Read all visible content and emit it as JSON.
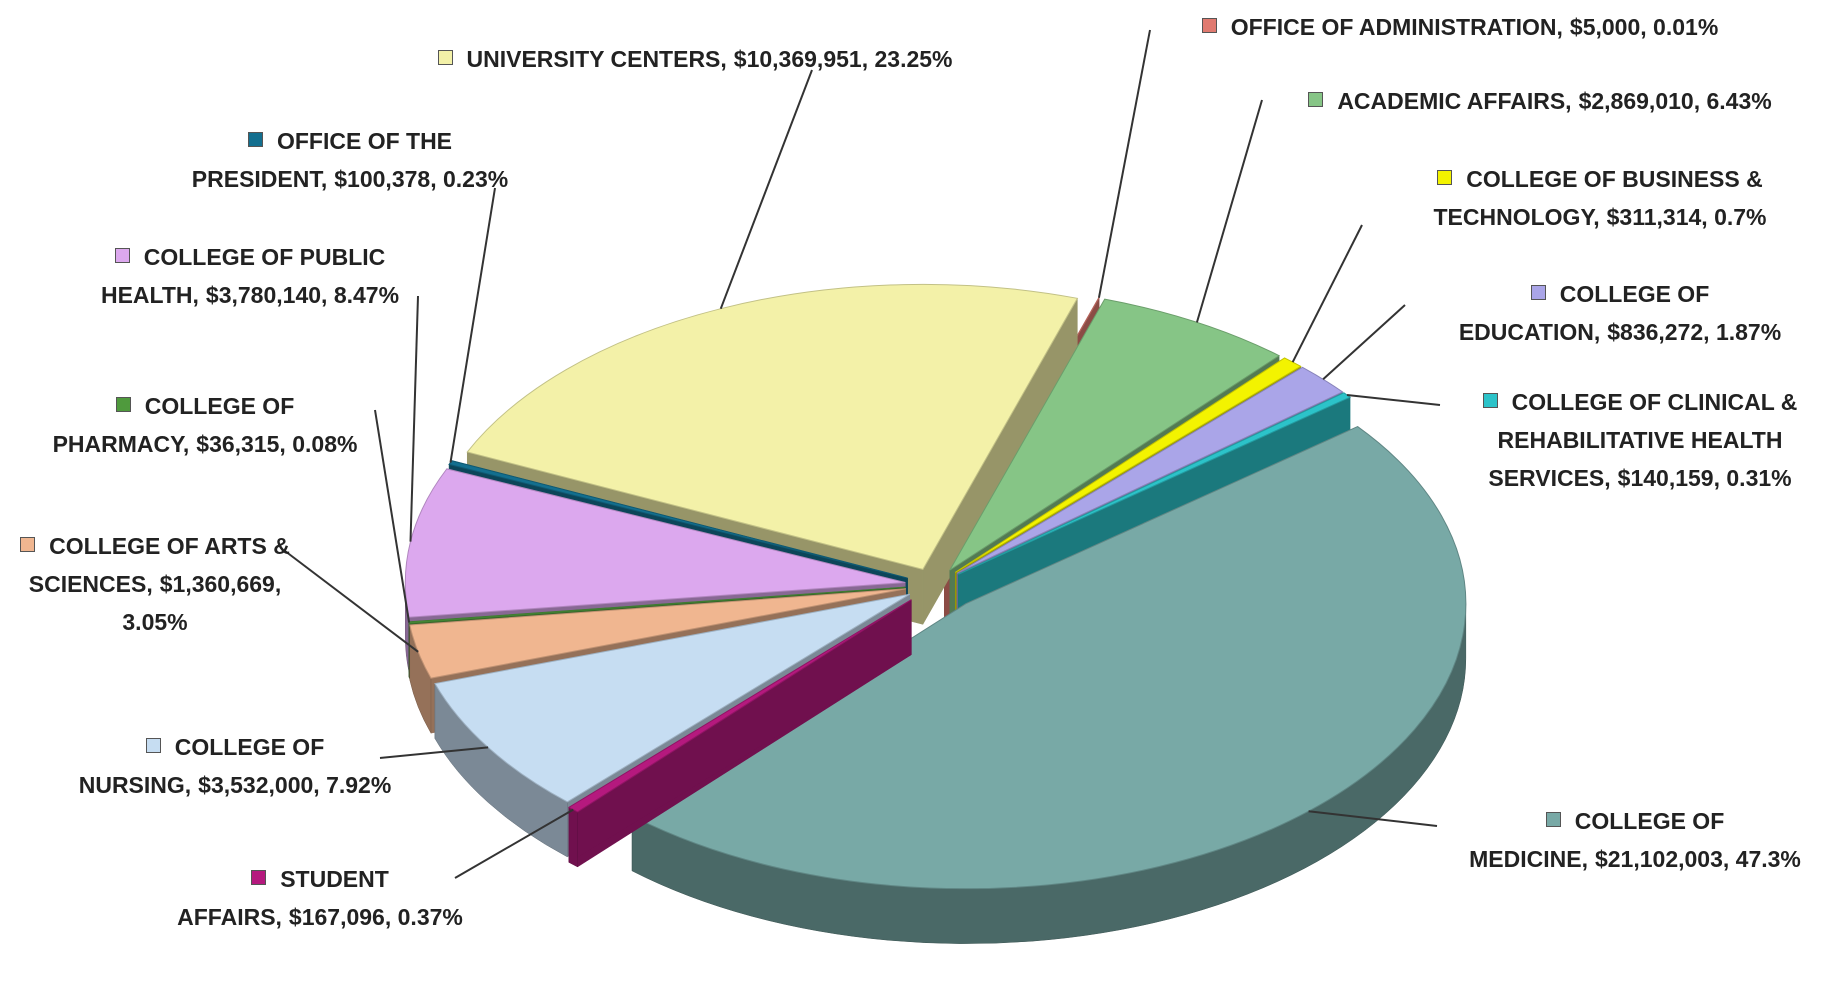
{
  "chart_data": {
    "type": "pie3d",
    "categories": [
      "OFFICE OF ADMINISTRATION,",
      "ACADEMIC AFFAIRS,",
      "COLLEGE OF BUSINESS & TECHNOLOGY,",
      "COLLEGE OF EDUCATION,",
      "COLLEGE OF CLINICAL & REHABILITATIVE HEALTH SERVICES,",
      "COLLEGE OF MEDICINE,",
      "STUDENT AFFAIRS,",
      "COLLEGE OF NURSING,",
      "COLLEGE OF ARTS & SCIENCES,",
      "COLLEGE OF PHARMACY,",
      "COLLEGE OF PUBLIC HEALTH,",
      "OFFICE OF THE PRESIDENT,",
      "UNIVERSITY CENTERS,"
    ],
    "values": [
      5000,
      2869010,
      311314,
      836272,
      140159,
      21102003,
      167096,
      3532000,
      1360669,
      36315,
      3780140,
      100378,
      10369951
    ],
    "value_labels": [
      "$5,000, 0.01%",
      "$2,869,010, 6.43%",
      "$311,314, 0.7%",
      "$836,272, 1.87%",
      "$140,159, 0.31%",
      "$21,102,003, 47.3%",
      "$167,096, 0.37%",
      "$3,532,000, 7.92%",
      "$1,360,669, 3.05%",
      "$36,315, 0.08%",
      "$3,780,140, 8.47%",
      "$100,378, 0.23%",
      "$10,369,951, 23.25%"
    ],
    "colors": [
      "#e07a70",
      "#86c586",
      "#f3f300",
      "#aaa5e8",
      "#2cc3c9",
      "#78a9a6",
      "#b5197e",
      "#c6ddf2",
      "#f0b690",
      "#4f9a3d",
      "#dca8ee",
      "#136f8f",
      "#f3f1a8"
    ]
  }
}
